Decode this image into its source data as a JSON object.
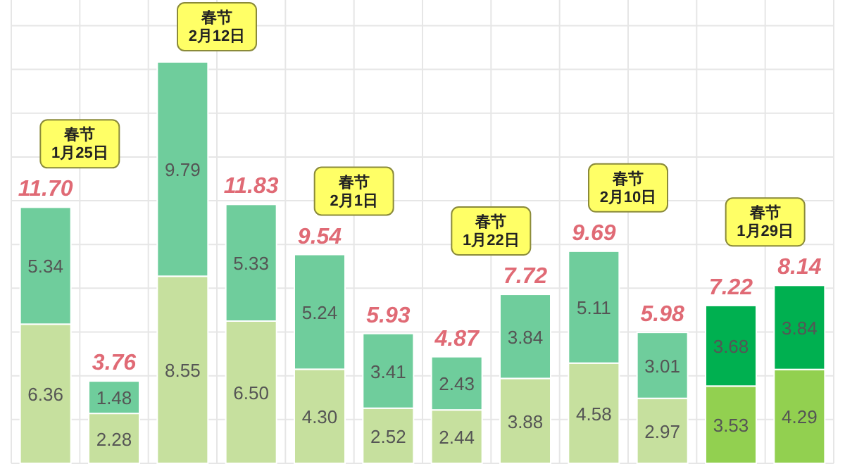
{
  "chart_data": {
    "type": "bar",
    "stacked": true,
    "categories": [
      null,
      null,
      null,
      null,
      null,
      null,
      null,
      null,
      null,
      null,
      null,
      null
    ],
    "series": [
      {
        "colors": [
          "#c6e09e",
          "#c6e09e",
          "#c6e09e",
          "#c6e09e",
          "#c6e09e",
          "#c6e09e",
          "#c6e09e",
          "#c6e09e",
          "#c6e09e",
          "#c6e09e",
          "#92d050",
          "#92d050"
        ],
        "values": [
          6.36,
          2.28,
          8.55,
          6.5,
          4.3,
          2.52,
          2.44,
          3.88,
          4.58,
          2.97,
          3.53,
          4.29
        ],
        "value_labels": [
          "6.36",
          "2.28",
          "8.55",
          "6.50",
          "4.30",
          "2.52",
          "2.44",
          "3.88",
          "4.58",
          "2.97",
          "3.53",
          "4.29"
        ]
      },
      {
        "colors": [
          "#6fcd9c",
          "#6fcd9c",
          "#6fcd9c",
          "#6fcd9c",
          "#6fcd9c",
          "#6fcd9c",
          "#6fcd9c",
          "#6fcd9c",
          "#6fcd9c",
          "#6fcd9c",
          "#00b050",
          "#00b050"
        ],
        "values": [
          5.34,
          1.48,
          9.79,
          5.33,
          5.24,
          3.41,
          2.43,
          3.84,
          5.11,
          3.01,
          3.68,
          3.84
        ],
        "value_labels": [
          "5.34",
          "1.48",
          "9.79",
          "5.33",
          "5.24",
          "3.41",
          "2.43",
          "3.84",
          "5.11",
          "3.01",
          "3.68",
          "3.84"
        ]
      }
    ],
    "totals": [
      "11.70",
      "3.76",
      null,
      "11.83",
      "9.54",
      "5.93",
      "4.87",
      "7.72",
      "9.69",
      "5.98",
      "7.22",
      "8.14"
    ],
    "annotations": [
      "春节\n1月25日",
      "春节\n2月12日",
      "春节\n2月1日",
      "春节\n1月22日",
      "春节\n2月10日",
      "春节\n1月29日"
    ],
    "grid": true
  }
}
